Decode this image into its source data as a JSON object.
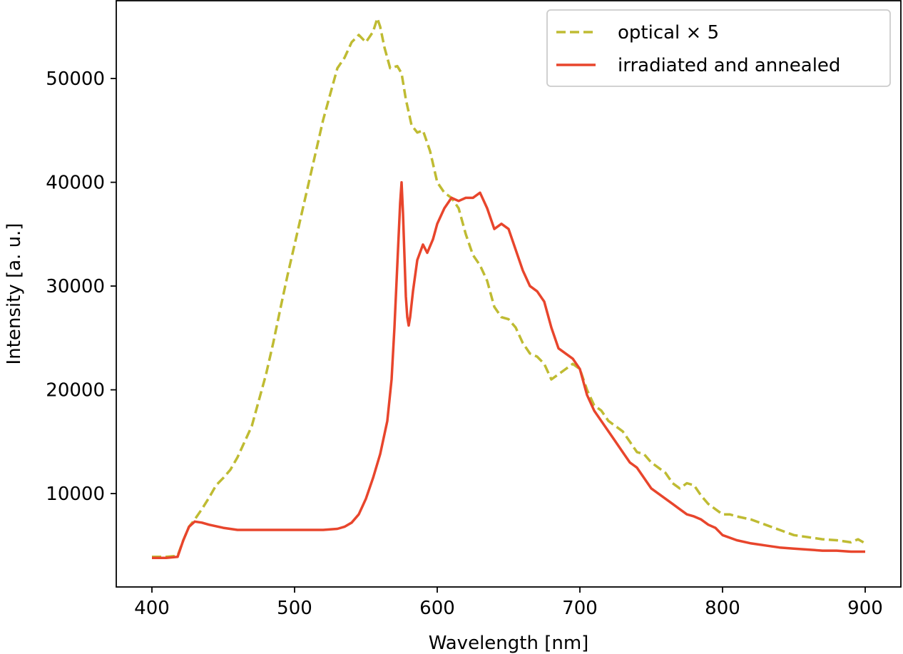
{
  "chart_data": {
    "type": "line",
    "title": "",
    "xlabel": "Wavelength [nm]",
    "ylabel": "Intensity [a. u.]",
    "xlim": [
      375,
      925
    ],
    "ylim": [
      1000,
      57500
    ],
    "xticks": [
      400,
      500,
      600,
      700,
      800,
      900
    ],
    "yticks": [
      10000,
      20000,
      30000,
      40000,
      50000
    ],
    "grid": false,
    "legend_position": "top-right",
    "series": [
      {
        "name": "optical × 5",
        "color": "#bfbb32",
        "style": "dashed",
        "x": [
          400,
          410,
          418,
          422,
          426,
          430,
          435,
          440,
          445,
          450,
          455,
          460,
          465,
          470,
          475,
          480,
          485,
          490,
          495,
          500,
          505,
          510,
          515,
          520,
          525,
          530,
          535,
          540,
          545,
          550,
          555,
          558,
          560,
          563,
          567,
          572,
          575,
          578,
          582,
          586,
          590,
          595,
          600,
          605,
          610,
          615,
          620,
          625,
          630,
          635,
          640,
          645,
          650,
          655,
          660,
          665,
          670,
          675,
          680,
          685,
          690,
          695,
          700,
          705,
          710,
          715,
          720,
          725,
          730,
          735,
          740,
          745,
          750,
          755,
          760,
          765,
          770,
          775,
          780,
          785,
          790,
          795,
          800,
          805,
          810,
          820,
          830,
          840,
          850,
          860,
          870,
          880,
          890,
          895,
          900
        ],
        "y": [
          3900,
          3900,
          4000,
          5500,
          6800,
          7500,
          8500,
          9600,
          10800,
          11500,
          12300,
          13500,
          15000,
          16500,
          19000,
          21500,
          24500,
          27800,
          31000,
          34000,
          37000,
          40000,
          43000,
          46000,
          48500,
          51000,
          52000,
          53500,
          54200,
          53500,
          54500,
          55800,
          55000,
          53000,
          51000,
          51200,
          50500,
          48000,
          45500,
          44800,
          45000,
          43000,
          40000,
          39000,
          38500,
          37500,
          35000,
          33000,
          32000,
          30500,
          28000,
          27000,
          26800,
          26000,
          24500,
          23500,
          23200,
          22500,
          21000,
          21500,
          22000,
          22500,
          22000,
          20000,
          18500,
          18000,
          17000,
          16500,
          16000,
          15000,
          14000,
          13800,
          13000,
          12500,
          12000,
          11000,
          10500,
          11000,
          10800,
          9800,
          9000,
          8500,
          8000,
          8000,
          7800,
          7500,
          7000,
          6500,
          6000,
          5800,
          5600,
          5500,
          5300,
          5600,
          5200
        ]
      },
      {
        "name": "irradiated and annealed",
        "color": "#e8452c",
        "style": "solid",
        "x": [
          400,
          410,
          418,
          422,
          426,
          430,
          435,
          440,
          450,
          460,
          470,
          480,
          490,
          500,
          510,
          520,
          530,
          535,
          540,
          545,
          550,
          555,
          560,
          565,
          568,
          570,
          572,
          574,
          575,
          576,
          577,
          578,
          579,
          580,
          581,
          583,
          586,
          590,
          593,
          597,
          600,
          605,
          610,
          615,
          620,
          625,
          630,
          635,
          640,
          645,
          650,
          655,
          660,
          665,
          670,
          675,
          680,
          685,
          690,
          695,
          700,
          705,
          710,
          715,
          720,
          725,
          730,
          735,
          740,
          745,
          750,
          755,
          760,
          765,
          770,
          775,
          780,
          785,
          790,
          795,
          800,
          810,
          820,
          830,
          840,
          850,
          860,
          870,
          880,
          890,
          900
        ],
        "y": [
          3800,
          3800,
          3900,
          5500,
          6800,
          7300,
          7200,
          7000,
          6700,
          6500,
          6500,
          6500,
          6500,
          6500,
          6500,
          6500,
          6600,
          6800,
          7200,
          8000,
          9500,
          11500,
          13800,
          17000,
          21000,
          26000,
          32000,
          38000,
          40000,
          37000,
          33000,
          29000,
          27000,
          26200,
          27000,
          29500,
          32500,
          34000,
          33200,
          34500,
          36000,
          37500,
          38500,
          38200,
          38500,
          38500,
          39000,
          37500,
          35500,
          36000,
          35500,
          33500,
          31500,
          30000,
          29500,
          28500,
          26000,
          24000,
          23500,
          23000,
          22000,
          19500,
          18000,
          17000,
          16000,
          15000,
          14000,
          13000,
          12500,
          11500,
          10500,
          10000,
          9500,
          9000,
          8500,
          8000,
          7800,
          7500,
          7000,
          6700,
          6000,
          5500,
          5200,
          5000,
          4800,
          4700,
          4600,
          4500,
          4500,
          4400,
          4400
        ]
      }
    ]
  }
}
